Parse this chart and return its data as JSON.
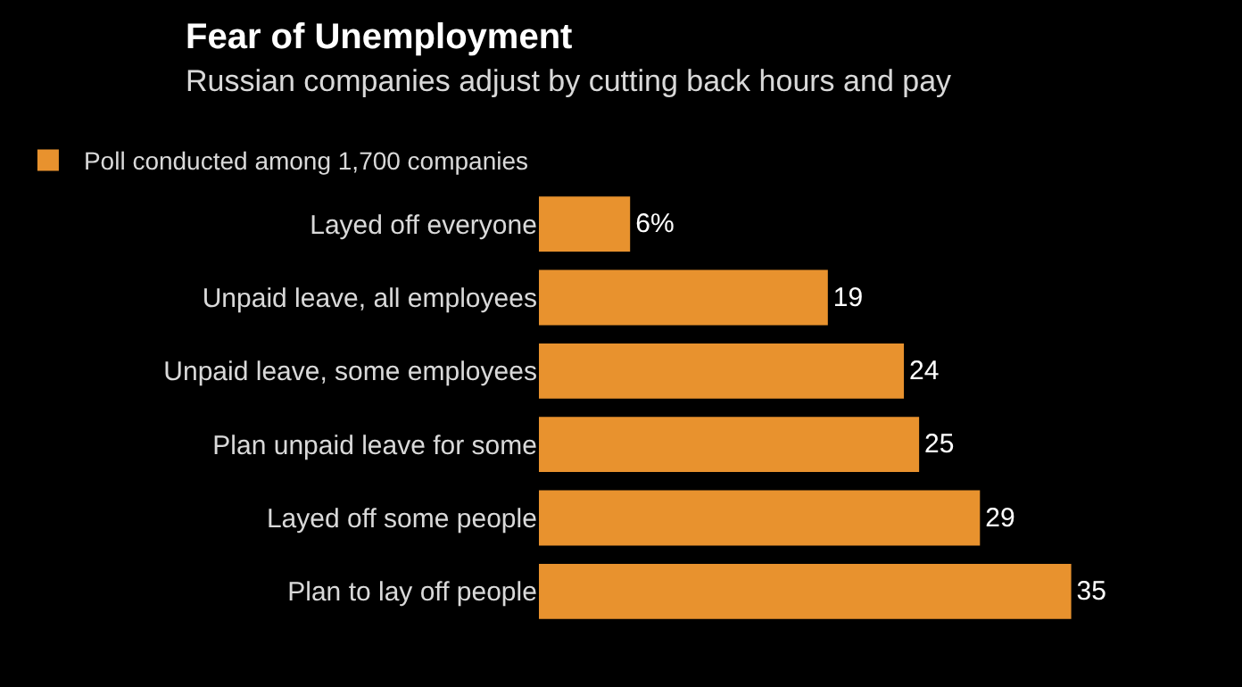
{
  "chart_data": {
    "type": "bar",
    "orientation": "horizontal",
    "title": "Fear of Unemployment",
    "subtitle": "Russian companies adjust by cutting back hours and pay",
    "categories": [
      "Layed off everyone",
      "Unpaid leave, all employees",
      "Unpaid leave, some employees",
      "Plan unpaid leave for some",
      "Layed off some people",
      "Plan to lay off people"
    ],
    "series": [
      {
        "name": "Poll conducted among 1,700 companies",
        "color": "#e8922e",
        "values": [
          6,
          19,
          24,
          25,
          29,
          35
        ],
        "value_labels": [
          "6%",
          "19",
          "24",
          "25",
          "29",
          "35"
        ]
      }
    ],
    "tick_labels": "y",
    "legend": "top left"
  }
}
